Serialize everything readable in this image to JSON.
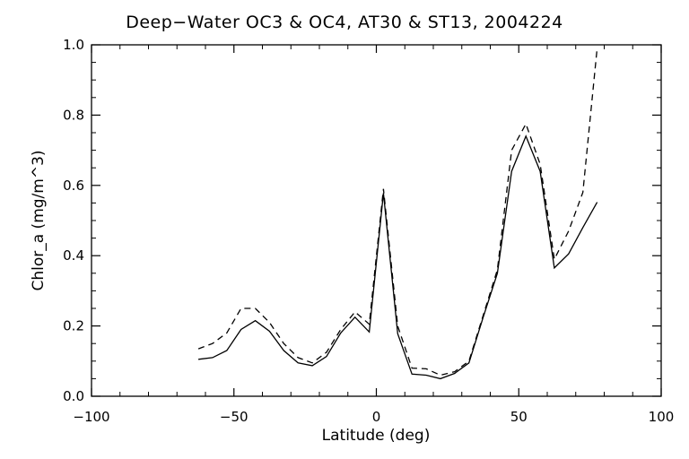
{
  "chart_data": {
    "type": "line",
    "title": "Deep−Water OC3 & OC4, AT30 & ST13, 2004224",
    "xlabel": "Latitude (deg)",
    "ylabel": "Chlor_a (mg/m^3)",
    "xlim": [
      -100,
      100
    ],
    "ylim": [
      0,
      1.0
    ],
    "xticks": [
      -100,
      -50,
      0,
      50,
      100
    ],
    "yticks": [
      0.0,
      0.2,
      0.4,
      0.6,
      0.8,
      1.0
    ],
    "xtick_labels": [
      "−100",
      "−50",
      "0",
      "50",
      "100"
    ],
    "ytick_labels": [
      "0.0",
      "0.2",
      "0.4",
      "0.6",
      "0.8",
      "1.0"
    ],
    "grid": false,
    "series": [
      {
        "style": "solid",
        "color": "#000000",
        "x": [
          -62.5,
          -57.5,
          -52.5,
          -47.5,
          -42.5,
          -37.5,
          -32.5,
          -27.5,
          -22.5,
          -17.5,
          -12.5,
          -7.5,
          -2.5,
          2.5,
          7.5,
          12.5,
          17.5,
          22.5,
          27.5,
          32.5,
          37.5,
          42.5,
          47.5,
          52.5,
          57.5,
          62.5,
          67.5,
          72.5,
          77.5
        ],
        "y": [
          0.105,
          0.11,
          0.13,
          0.19,
          0.215,
          0.185,
          0.13,
          0.095,
          0.087,
          0.113,
          0.18,
          0.225,
          0.183,
          0.578,
          0.178,
          0.063,
          0.06,
          0.05,
          0.065,
          0.095,
          0.225,
          0.35,
          0.64,
          0.74,
          0.64,
          0.365,
          0.405,
          0.48,
          0.552
        ]
      },
      {
        "style": "dashed",
        "color": "#000000",
        "x": [
          -62.5,
          -57.5,
          -52.5,
          -47.5,
          -42.5,
          -37.5,
          -32.5,
          -27.5,
          -22.5,
          -17.5,
          -12.5,
          -7.5,
          -2.5,
          2.5,
          7.5,
          12.5,
          17.5,
          22.5,
          27.5,
          32.5,
          37.5,
          42.5,
          47.5,
          52.5,
          57.5,
          62.5,
          67.5,
          72.5,
          77.5
        ],
        "y": [
          0.135,
          0.15,
          0.18,
          0.25,
          0.25,
          0.21,
          0.15,
          0.11,
          0.095,
          0.125,
          0.19,
          0.24,
          0.205,
          0.59,
          0.2,
          0.08,
          0.078,
          0.06,
          0.07,
          0.1,
          0.23,
          0.36,
          0.7,
          0.775,
          0.66,
          0.39,
          0.47,
          0.58,
          0.99
        ]
      }
    ]
  }
}
